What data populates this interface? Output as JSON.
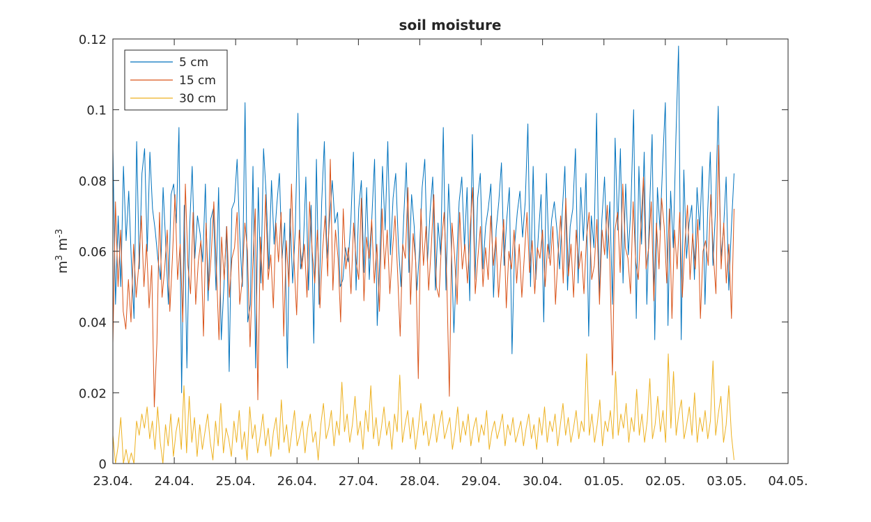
{
  "chart_data": {
    "type": "line",
    "title": "soil moisture",
    "ylabel": {
      "base1": "m",
      "exp1": "3",
      "base2": " m",
      "exp2": "-3"
    },
    "ylim": [
      0,
      0.12
    ],
    "yticks": [
      "0",
      "0.02",
      "0.04",
      "0.06",
      "0.08",
      "0.1",
      "0.12"
    ],
    "xlim": [
      "2024-04-23",
      "2024-05-04"
    ],
    "xticks": [
      "23.04.",
      "24.04.",
      "25.04.",
      "26.04.",
      "27.04.",
      "28.04.",
      "29.04.",
      "30.04.",
      "01.05.",
      "02.05.",
      "03.05.",
      "04.05."
    ],
    "legend_position": "top-left",
    "grid": false,
    "series": [
      {
        "name": "5 cm",
        "color": "#0072BD",
        "values": [
          0.089,
          0.045,
          0.07,
          0.05,
          0.084,
          0.063,
          0.077,
          0.057,
          0.041,
          0.091,
          0.055,
          0.082,
          0.089,
          0.06,
          0.088,
          0.072,
          0.066,
          0.058,
          0.052,
          0.078,
          0.062,
          0.045,
          0.076,
          0.079,
          0.068,
          0.095,
          0.02,
          0.073,
          0.027,
          0.066,
          0.084,
          0.058,
          0.07,
          0.065,
          0.057,
          0.079,
          0.046,
          0.069,
          0.072,
          0.049,
          0.078,
          0.035,
          0.05,
          0.067,
          0.026,
          0.072,
          0.074,
          0.086,
          0.064,
          0.05,
          0.102,
          0.04,
          0.045,
          0.084,
          0.027,
          0.078,
          0.051,
          0.089,
          0.076,
          0.055,
          0.08,
          0.062,
          0.073,
          0.082,
          0.058,
          0.068,
          0.027,
          0.072,
          0.051,
          0.066,
          0.099,
          0.055,
          0.06,
          0.081,
          0.049,
          0.073,
          0.034,
          0.086,
          0.045,
          0.074,
          0.091,
          0.058,
          0.069,
          0.08,
          0.068,
          0.071,
          0.05,
          0.052,
          0.061,
          0.057,
          0.068,
          0.088,
          0.049,
          0.072,
          0.08,
          0.054,
          0.078,
          0.052,
          0.07,
          0.086,
          0.039,
          0.058,
          0.084,
          0.066,
          0.091,
          0.059,
          0.075,
          0.082,
          0.062,
          0.05,
          0.069,
          0.085,
          0.054,
          0.076,
          0.067,
          0.049,
          0.06,
          0.078,
          0.086,
          0.057,
          0.071,
          0.081,
          0.049,
          0.068,
          0.059,
          0.095,
          0.049,
          0.079,
          0.062,
          0.037,
          0.056,
          0.074,
          0.081,
          0.061,
          0.078,
          0.046,
          0.093,
          0.052,
          0.075,
          0.082,
          0.055,
          0.067,
          0.072,
          0.079,
          0.047,
          0.066,
          0.074,
          0.085,
          0.056,
          0.069,
          0.078,
          0.031,
          0.062,
          0.071,
          0.077,
          0.064,
          0.074,
          0.096,
          0.05,
          0.084,
          0.052,
          0.065,
          0.076,
          0.04,
          0.082,
          0.058,
          0.069,
          0.074,
          0.066,
          0.055,
          0.071,
          0.084,
          0.049,
          0.067,
          0.072,
          0.089,
          0.051,
          0.078,
          0.063,
          0.082,
          0.036,
          0.07,
          0.061,
          0.099,
          0.047,
          0.069,
          0.081,
          0.058,
          0.074,
          0.045,
          0.092,
          0.066,
          0.089,
          0.051,
          0.079,
          0.059,
          0.073,
          0.1,
          0.041,
          0.084,
          0.062,
          0.088,
          0.045,
          0.071,
          0.093,
          0.035,
          0.078,
          0.066,
          0.085,
          0.102,
          0.039,
          0.077,
          0.061,
          0.092,
          0.118,
          0.035,
          0.083,
          0.058,
          0.068,
          0.073,
          0.052,
          0.078,
          0.066,
          0.084,
          0.045,
          0.071,
          0.088,
          0.056,
          0.072,
          0.101,
          0.058,
          0.066,
          0.081,
          0.049,
          0.067,
          0.082
        ]
      },
      {
        "name": "15 cm",
        "color": "#D95319",
        "values": [
          0.034,
          0.074,
          0.05,
          0.066,
          0.043,
          0.038,
          0.052,
          0.04,
          0.062,
          0.047,
          0.056,
          0.07,
          0.05,
          0.062,
          0.044,
          0.056,
          0.016,
          0.034,
          0.071,
          0.047,
          0.055,
          0.066,
          0.043,
          0.058,
          0.076,
          0.052,
          0.062,
          0.04,
          0.079,
          0.056,
          0.048,
          0.071,
          0.045,
          0.057,
          0.063,
          0.036,
          0.068,
          0.049,
          0.059,
          0.074,
          0.055,
          0.035,
          0.064,
          0.052,
          0.067,
          0.047,
          0.058,
          0.061,
          0.071,
          0.045,
          0.052,
          0.068,
          0.06,
          0.033,
          0.055,
          0.072,
          0.018,
          0.064,
          0.049,
          0.076,
          0.052,
          0.059,
          0.044,
          0.068,
          0.057,
          0.071,
          0.036,
          0.063,
          0.05,
          0.079,
          0.057,
          0.042,
          0.066,
          0.055,
          0.062,
          0.047,
          0.074,
          0.06,
          0.051,
          0.066,
          0.044,
          0.06,
          0.07,
          0.053,
          0.086,
          0.049,
          0.066,
          0.058,
          0.04,
          0.072,
          0.055,
          0.061,
          0.048,
          0.068,
          0.057,
          0.052,
          0.075,
          0.046,
          0.064,
          0.058,
          0.069,
          0.051,
          0.062,
          0.043,
          0.072,
          0.055,
          0.066,
          0.048,
          0.06,
          0.07,
          0.054,
          0.036,
          0.062,
          0.058,
          0.078,
          0.045,
          0.065,
          0.057,
          0.024,
          0.072,
          0.056,
          0.067,
          0.049,
          0.061,
          0.076,
          0.05,
          0.047,
          0.063,
          0.071,
          0.052,
          0.019,
          0.068,
          0.059,
          0.045,
          0.071,
          0.055,
          0.062,
          0.051,
          0.066,
          0.078,
          0.048,
          0.058,
          0.067,
          0.05,
          0.061,
          0.052,
          0.07,
          0.056,
          0.064,
          0.047,
          0.058,
          0.069,
          0.044,
          0.06,
          0.055,
          0.066,
          0.051,
          0.062,
          0.047,
          0.059,
          0.071,
          0.054,
          0.063,
          0.048,
          0.061,
          0.058,
          0.066,
          0.05,
          0.062,
          0.056,
          0.067,
          0.045,
          0.059,
          0.07,
          0.051,
          0.075,
          0.053,
          0.062,
          0.047,
          0.066,
          0.055,
          0.06,
          0.048,
          0.064,
          0.071,
          0.052,
          0.056,
          0.069,
          0.045,
          0.066,
          0.059,
          0.073,
          0.057,
          0.025,
          0.066,
          0.071,
          0.054,
          0.079,
          0.061,
          0.058,
          0.048,
          0.074,
          0.057,
          0.052,
          0.067,
          0.081,
          0.055,
          0.061,
          0.074,
          0.046,
          0.068,
          0.055,
          0.075,
          0.067,
          0.051,
          0.072,
          0.041,
          0.066,
          0.055,
          0.071,
          0.047,
          0.062,
          0.073,
          0.052,
          0.065,
          0.055,
          0.069,
          0.041,
          0.06,
          0.063,
          0.056,
          0.076,
          0.059,
          0.048,
          0.09,
          0.055,
          0.068,
          0.051,
          0.062,
          0.041,
          0.072
        ]
      },
      {
        "name": "30 cm",
        "color": "#EDB120",
        "values": [
          0.008,
          0,
          0.005,
          0.013,
          0,
          0.004,
          0,
          0.003,
          0,
          0.012,
          0.008,
          0.014,
          0.01,
          0.016,
          0.007,
          0.012,
          0.004,
          0.016,
          0.006,
          0,
          0.011,
          0.005,
          0.014,
          0.002,
          0.009,
          0.013,
          0.004,
          0.022,
          0.003,
          0.019,
          0.006,
          0.013,
          0.002,
          0.011,
          0.004,
          0.009,
          0.014,
          0.006,
          0.001,
          0.012,
          0.005,
          0.017,
          0.003,
          0.01,
          0.007,
          0.002,
          0.012,
          0.006,
          0.015,
          0.004,
          0.009,
          0.001,
          0.016,
          0.007,
          0.011,
          0.003,
          0.008,
          0.014,
          0.005,
          0.01,
          0.002,
          0.009,
          0.013,
          0.004,
          0.018,
          0.006,
          0.011,
          0.003,
          0.009,
          0.015,
          0.005,
          0.008,
          0.012,
          0.003,
          0.01,
          0.014,
          0.006,
          0.009,
          0.001,
          0.011,
          0.017,
          0.007,
          0.01,
          0.015,
          0.005,
          0.012,
          0.008,
          0.023,
          0.009,
          0.014,
          0.006,
          0.011,
          0.019,
          0.008,
          0.012,
          0.004,
          0.015,
          0.009,
          0.022,
          0.007,
          0.013,
          0.005,
          0.01,
          0.016,
          0.008,
          0.012,
          0.004,
          0.014,
          0.009,
          0.025,
          0.006,
          0.011,
          0.015,
          0.007,
          0.013,
          0.004,
          0.01,
          0.017,
          0.008,
          0.012,
          0.005,
          0.009,
          0.014,
          0.006,
          0.011,
          0.015,
          0.007,
          0.01,
          0.013,
          0.004,
          0.009,
          0.016,
          0.006,
          0.012,
          0.008,
          0.014,
          0.005,
          0.01,
          0.013,
          0.006,
          0.011,
          0.008,
          0.015,
          0.004,
          0.009,
          0.012,
          0.007,
          0.01,
          0.014,
          0.005,
          0.011,
          0.008,
          0.013,
          0.006,
          0.009,
          0.012,
          0.005,
          0.01,
          0.014,
          0.007,
          0.011,
          0.004,
          0.013,
          0.008,
          0.016,
          0.006,
          0.012,
          0.009,
          0.014,
          0.005,
          0.011,
          0.017,
          0.008,
          0.013,
          0.006,
          0.01,
          0.015,
          0.007,
          0.012,
          0.009,
          0.031,
          0.008,
          0.014,
          0.006,
          0.011,
          0.018,
          0.005,
          0.012,
          0.009,
          0.015,
          0.007,
          0.026,
          0.008,
          0.014,
          0.01,
          0.017,
          0.006,
          0.013,
          0.009,
          0.021,
          0.008,
          0.014,
          0.006,
          0.012,
          0.024,
          0.007,
          0.011,
          0.019,
          0.009,
          0.015,
          0.006,
          0.031,
          0.01,
          0.026,
          0.008,
          0.014,
          0.018,
          0.007,
          0.011,
          0.016,
          0.008,
          0.02,
          0.006,
          0.013,
          0.009,
          0.015,
          0.007,
          0.012,
          0.029,
          0.008,
          0.014,
          0.019,
          0.006,
          0.011,
          0.022,
          0.008,
          0.001
        ]
      }
    ]
  }
}
